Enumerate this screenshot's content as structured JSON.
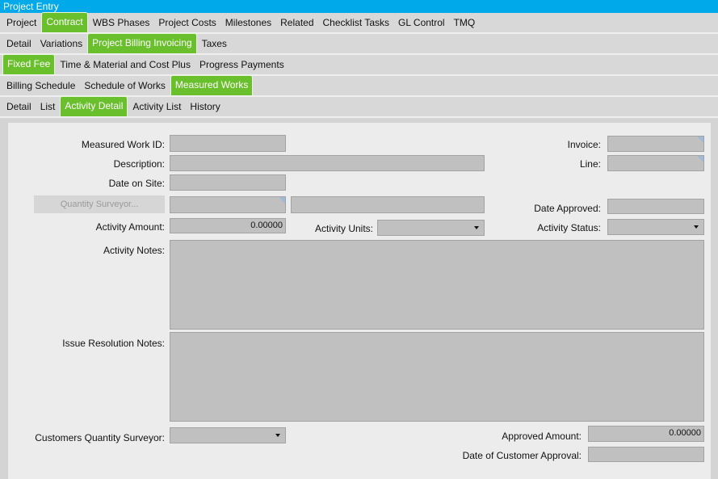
{
  "title": "Project Entry",
  "tabs": [
    {
      "items": [
        "Project",
        "Contract",
        "WBS Phases",
        "Project Costs",
        "Milestones",
        "Related",
        "Checklist Tasks",
        "GL Control",
        "TMQ"
      ],
      "active": 1
    },
    {
      "items": [
        "Detail",
        "Variations",
        "Project Billing Invoicing",
        "Taxes"
      ],
      "active": 2
    },
    {
      "items": [
        "Fixed Fee",
        "Time & Material and Cost Plus",
        "Progress Payments"
      ],
      "active": 0
    },
    {
      "items": [
        "Billing Schedule",
        "Schedule of Works",
        "Measured Works"
      ],
      "active": 2
    },
    {
      "items": [
        "Detail",
        "List",
        "Activity Detail",
        "Activity List",
        "History"
      ],
      "active": 2
    }
  ],
  "form": {
    "measured_work_id": "Measured Work ID:",
    "description": "Description:",
    "date_on_site": "Date on Site:",
    "quantity_surveyor_button": "Quantity Surveyor...",
    "activity_amount": "Activity Amount:",
    "activity_amount_value": "0.00000",
    "activity_units": "Activity Units:",
    "activity_notes": "Activity Notes:",
    "issue_resolution_notes": "Issue Resolution Notes:",
    "customers_qs": "Customers Quantity Surveyor:",
    "invoice": "Invoice:",
    "line": "Line:",
    "date_approved": "Date Approved:",
    "activity_status": "Activity Status:",
    "approved_amount": "Approved Amount:",
    "approved_amount_value": "0.00000",
    "date_customer_approval": "Date of Customer Approval:"
  }
}
